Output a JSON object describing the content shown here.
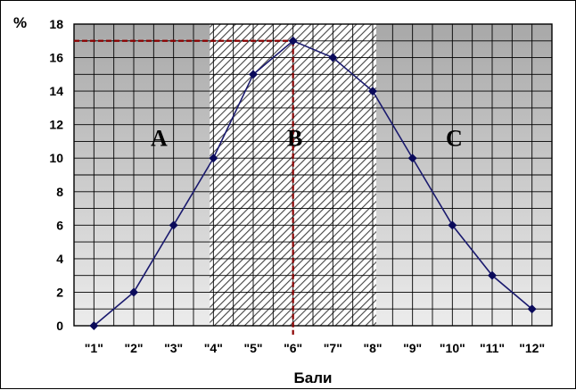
{
  "chart_data": {
    "type": "line",
    "title": "",
    "xlabel": "Бали",
    "ylabel": "%",
    "categories": [
      "\"1\"",
      "\"2\"",
      "\"3\"",
      "\"4\"",
      "\"5\"",
      "\"6\"",
      "\"7\"",
      "\"8\"",
      "\"9\"",
      "\"10\"",
      "\"11\"",
      "\"12\""
    ],
    "series": [
      {
        "values": [
          0,
          2,
          6,
          10,
          15,
          17,
          16,
          14,
          10,
          6,
          3,
          1
        ]
      }
    ],
    "ylim": [
      0,
      18
    ],
    "yticks": [
      0,
      2,
      4,
      6,
      8,
      10,
      12,
      14,
      16,
      18
    ],
    "grid": true,
    "zones": [
      {
        "label": "A",
        "from": "\"1\"",
        "to": "\"4\""
      },
      {
        "label": "B",
        "from": "\"4\"",
        "to": "\"8\""
      },
      {
        "label": "C",
        "from": "\"8\"",
        "to": "\"12\""
      }
    ],
    "highlight": {
      "category": "\"6\"",
      "value": 17
    },
    "colors": {
      "line": "#1a1a6e",
      "marker": "#0a0a5a",
      "guide": "#8b0000",
      "grid": "#000000"
    }
  }
}
